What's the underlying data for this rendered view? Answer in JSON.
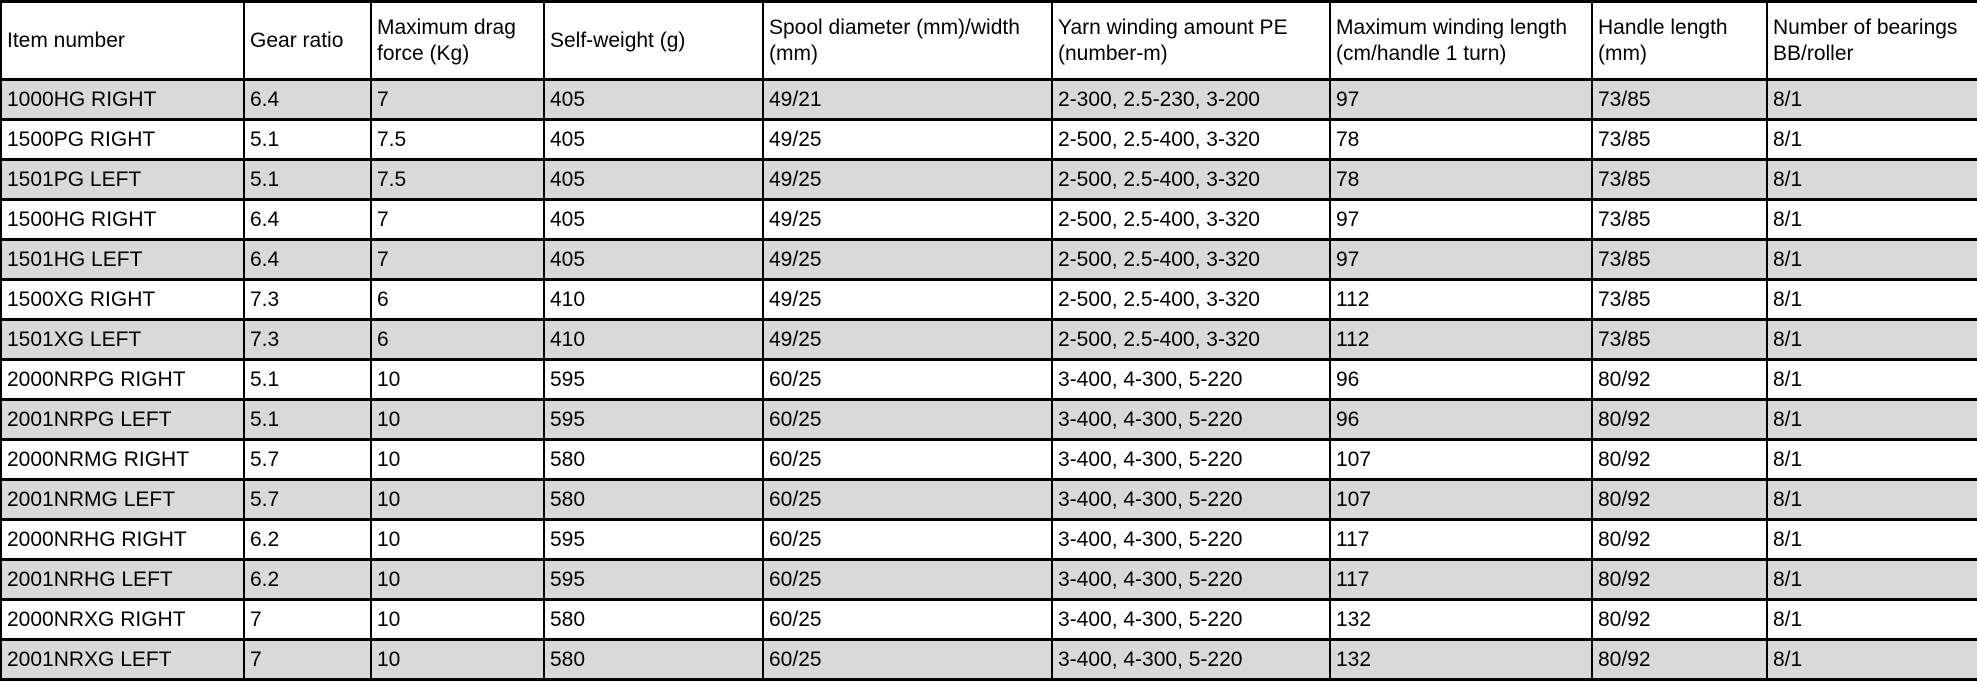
{
  "table": {
    "columns": [
      {
        "key": "item-number",
        "label": "Item number"
      },
      {
        "key": "gear-ratio",
        "label": "Gear ratio"
      },
      {
        "key": "max-drag-force",
        "label": "Maximum drag force (Kg)"
      },
      {
        "key": "self-weight",
        "label": "Self-weight (g)"
      },
      {
        "key": "spool-diameter-width",
        "label": "Spool diameter (mm)/width (mm)"
      },
      {
        "key": "yarn-winding-amount",
        "label": "Yarn winding amount PE (number-m)"
      },
      {
        "key": "max-winding-length",
        "label": "Maximum winding length (cm/handle 1 turn)"
      },
      {
        "key": "handle-length",
        "label": "Handle length (mm)"
      },
      {
        "key": "bearings",
        "label": "Number of bearings BB/roller"
      }
    ],
    "rows": [
      [
        "1000HG RIGHT",
        "6.4",
        "7",
        "405",
        "49/21",
        "2-300, 2.5-230, 3-200",
        "97",
        "73/85",
        "8/1"
      ],
      [
        "1500PG RIGHT",
        "5.1",
        "7.5",
        "405",
        "49/25",
        "2-500, 2.5-400, 3-320",
        "78",
        "73/85",
        "8/1"
      ],
      [
        "1501PG LEFT",
        "5.1",
        "7.5",
        "405",
        "49/25",
        "2-500, 2.5-400, 3-320",
        "78",
        "73/85",
        "8/1"
      ],
      [
        "1500HG RIGHT",
        "6.4",
        "7",
        "405",
        "49/25",
        "2-500, 2.5-400, 3-320",
        "97",
        "73/85",
        "8/1"
      ],
      [
        "1501HG LEFT",
        "6.4",
        "7",
        "405",
        "49/25",
        "2-500, 2.5-400, 3-320",
        "97",
        "73/85",
        "8/1"
      ],
      [
        "1500XG RIGHT",
        "7.3",
        "6",
        "410",
        "49/25",
        "2-500, 2.5-400, 3-320",
        "112",
        "73/85",
        "8/1"
      ],
      [
        "1501XG LEFT",
        "7.3",
        "6",
        "410",
        "49/25",
        "2-500, 2.5-400, 3-320",
        "112",
        "73/85",
        "8/1"
      ],
      [
        "2000NRPG RIGHT",
        "5.1",
        "10",
        "595",
        "60/25",
        "3-400, 4-300, 5-220",
        "96",
        "80/92",
        "8/1"
      ],
      [
        "2001NRPG LEFT",
        "5.1",
        "10",
        "595",
        "60/25",
        "3-400, 4-300, 5-220",
        "96",
        "80/92",
        "8/1"
      ],
      [
        "2000NRMG RIGHT",
        "5.7",
        "10",
        "580",
        "60/25",
        "3-400, 4-300, 5-220",
        "107",
        "80/92",
        "8/1"
      ],
      [
        "2001NRMG LEFT",
        "5.7",
        "10",
        "580",
        "60/25",
        "3-400, 4-300, 5-220",
        "107",
        "80/92",
        "8/1"
      ],
      [
        "2000NRHG RIGHT",
        "6.2",
        "10",
        "595",
        "60/25",
        "3-400, 4-300, 5-220",
        "117",
        "80/92",
        "8/1"
      ],
      [
        "2001NRHG LEFT",
        "6.2",
        "10",
        "595",
        "60/25",
        "3-400, 4-300, 5-220",
        "117",
        "80/92",
        "8/1"
      ],
      [
        "2000NRXG RIGHT",
        "7",
        "10",
        "580",
        "60/25",
        "3-400, 4-300, 5-220",
        "132",
        "80/92",
        "8/1"
      ],
      [
        "2001NRXG LEFT",
        "7",
        "10",
        "580",
        "60/25",
        "3-400, 4-300, 5-220",
        "132",
        "80/92",
        "8/1"
      ]
    ],
    "colors": {
      "stripe_row_bg": "#d9d9d9",
      "plain_row_bg": "#ffffff",
      "border": "#000000",
      "text": "#000000"
    }
  }
}
